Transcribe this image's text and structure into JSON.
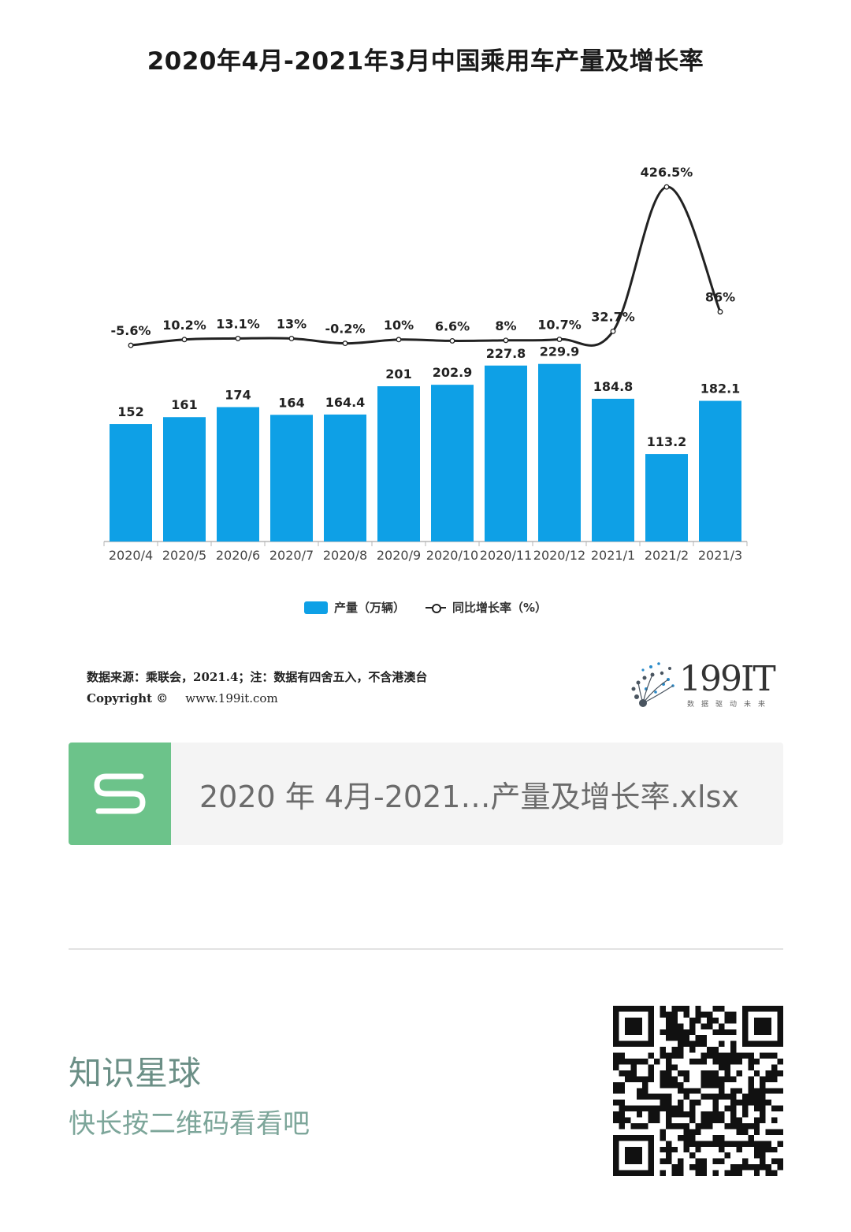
{
  "chart_data": {
    "type": "bar",
    "title": "2020年4月-2021年3月中国乘用车产量及增长率",
    "categories": [
      "2020/4",
      "2020/5",
      "2020/6",
      "2020/7",
      "2020/8",
      "2020/9",
      "2020/10",
      "2020/11",
      "2020/12",
      "2021/1",
      "2021/2",
      "2021/3"
    ],
    "series": [
      {
        "name": "产量（万辆）",
        "type": "bar",
        "values": [
          152,
          161,
          174,
          164,
          164.4,
          201,
          202.9,
          227.8,
          229.9,
          184.8,
          113.2,
          182.1
        ],
        "labels": [
          "152",
          "161",
          "174",
          "164",
          "164.4",
          "201",
          "202.9",
          "227.8",
          "229.9",
          "184.8",
          "113.2",
          "182.1"
        ],
        "color": "#0ea0e6"
      },
      {
        "name": "同比增长率（%）",
        "type": "line",
        "values": [
          -5.6,
          10.2,
          13.1,
          13,
          -0.2,
          10,
          6.6,
          8,
          10.7,
          32.7,
          426.5,
          86
        ],
        "labels": [
          "-5.6%",
          "10.2%",
          "13.1%",
          "13%",
          "-0.2%",
          "10%",
          "6.6%",
          "8%",
          "10.7%",
          "32.7%",
          "426.5%",
          "86%"
        ],
        "color": "#222222"
      }
    ],
    "legend_position": "bottom",
    "grid": false
  },
  "source": {
    "text": "数据来源：乘联会，2021.4；注：数据有四舍五入，不含港澳台",
    "copyright_label": "Copyright ©",
    "url": "www.199it.com"
  },
  "logo": {
    "text": "199IT",
    "subtext": "数据驱动未来",
    "icon": "dandelion-dots-icon"
  },
  "file": {
    "name": "2020 年 4月-2021…产量及增长率.xlsx",
    "icon": "spreadsheet-s-icon",
    "icon_color": "#6cc38a"
  },
  "promo": {
    "title": "知识星球",
    "subtitle": "快长按二维码看看吧",
    "qr_icon": "qr-code-icon"
  }
}
